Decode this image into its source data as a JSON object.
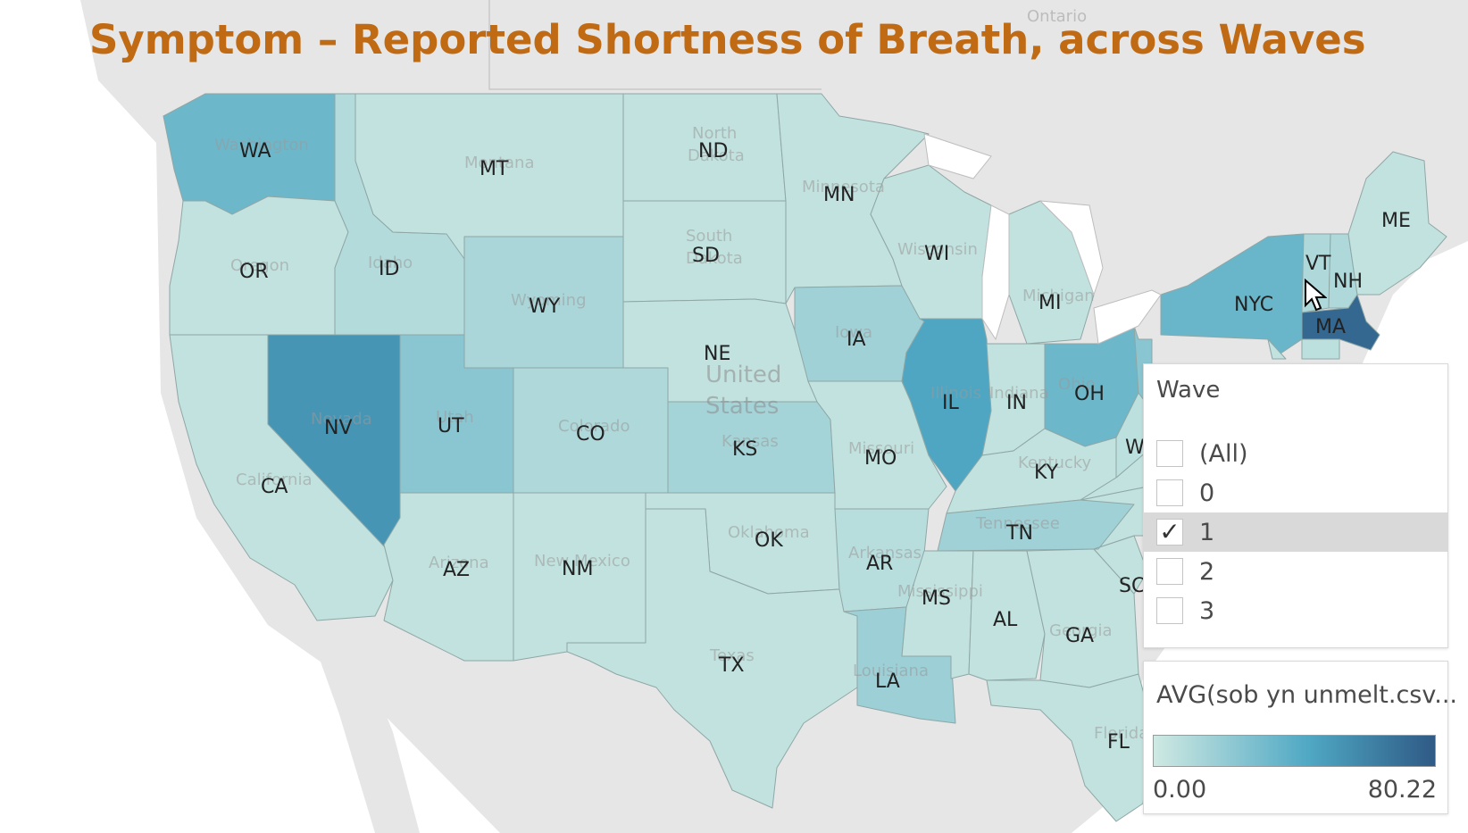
{
  "title": "Symptom – Reported Shortness of Breath, across Waves",
  "background_labels": {
    "ontario": "Ontario",
    "country_line1": "United",
    "country_line2": "States",
    "washington": "Washington",
    "montana": "Montana",
    "north": "North",
    "dakota_n": "Dakota",
    "south": "South",
    "dakota_s": "Dakota",
    "minnesota": "Minnesota",
    "oregon": "Oregon",
    "idaho": "Idaho",
    "wyoming": "Wyoming",
    "wisconsin": "Wisconsin",
    "michigan": "Michigan",
    "iowa": "Iowa",
    "nevada": "Nevada",
    "utah": "Utah",
    "colorado": "Colorado",
    "kansas": "Kansas",
    "missouri": "Missouri",
    "illinois": "Illinois",
    "indiana": "Indiana",
    "ohio": "Ohio",
    "kentucky": "Kentucky",
    "tennessee": "Tennessee",
    "california": "California",
    "arizona": "Arizona",
    "new_mexico": "New Mexico",
    "oklahoma": "Oklahoma",
    "arkansas": "Arkansas",
    "mississippi": "Mississippi",
    "georgia": "Georgia",
    "texas": "Texas",
    "louisiana": "Louisiana",
    "florida": "Florida"
  },
  "states": [
    {
      "code": "WA",
      "label": "WA",
      "level": 0.42
    },
    {
      "code": "OR",
      "label": "OR",
      "level": 0.06
    },
    {
      "code": "CA",
      "label": "CA",
      "level": 0.06
    },
    {
      "code": "ID",
      "label": "ID",
      "level": 0.12
    },
    {
      "code": "NV",
      "label": "NV",
      "level": 0.66
    },
    {
      "code": "MT",
      "label": "MT",
      "level": 0.06
    },
    {
      "code": "WY",
      "label": "WY",
      "level": 0.16
    },
    {
      "code": "UT",
      "label": "UT",
      "level": 0.3
    },
    {
      "code": "AZ",
      "label": "AZ",
      "level": 0.06
    },
    {
      "code": "CO",
      "label": "CO",
      "level": 0.14
    },
    {
      "code": "NM",
      "label": "NM",
      "level": 0.06
    },
    {
      "code": "ND",
      "label": "ND",
      "level": 0.06
    },
    {
      "code": "SD",
      "label": "SD",
      "level": 0.06
    },
    {
      "code": "NE",
      "label": "NE",
      "level": 0.06
    },
    {
      "code": "KS",
      "label": "KS",
      "level": 0.18
    },
    {
      "code": "OK",
      "label": "OK",
      "level": 0.06
    },
    {
      "code": "TX",
      "label": "TX",
      "level": 0.06
    },
    {
      "code": "MN",
      "label": "MN",
      "level": 0.06
    },
    {
      "code": "IA",
      "label": "IA",
      "level": 0.2
    },
    {
      "code": "MO",
      "label": "MO",
      "level": 0.06
    },
    {
      "code": "AR",
      "label": "AR",
      "level": 0.1
    },
    {
      "code": "LA",
      "label": "LA",
      "level": 0.22
    },
    {
      "code": "WI",
      "label": "WI",
      "level": 0.06
    },
    {
      "code": "IL",
      "label": "IL",
      "level": 0.56
    },
    {
      "code": "MI",
      "label": "MI",
      "level": 0.06
    },
    {
      "code": "IN",
      "label": "IN",
      "level": 0.06
    },
    {
      "code": "OH",
      "label": "OH",
      "level": 0.42
    },
    {
      "code": "KY",
      "label": "KY",
      "level": 0.06
    },
    {
      "code": "TN",
      "label": "TN",
      "level": 0.2
    },
    {
      "code": "MS",
      "label": "MS",
      "level": 0.06
    },
    {
      "code": "AL",
      "label": "AL",
      "level": 0.06
    },
    {
      "code": "GA",
      "label": "GA",
      "level": 0.06
    },
    {
      "code": "FL",
      "label": "FL",
      "level": 0.06
    },
    {
      "code": "SC",
      "label": "SC",
      "level": 0.06
    },
    {
      "code": "NC",
      "label": "",
      "level": 0.06
    },
    {
      "code": "VA",
      "label": "",
      "level": 0.06
    },
    {
      "code": "WV",
      "label": "W",
      "level": 0.08
    },
    {
      "code": "PA",
      "label": "",
      "level": 0.3
    },
    {
      "code": "NYC",
      "label": "NYC",
      "level": 0.44
    },
    {
      "code": "VT",
      "label": "VT",
      "level": 0.14
    },
    {
      "code": "NH",
      "label": "NH",
      "level": 0.14
    },
    {
      "code": "ME",
      "label": "ME",
      "level": 0.06
    },
    {
      "code": "MA",
      "label": "MA",
      "level": 0.92
    },
    {
      "code": "CT",
      "label": "",
      "level": 0.08
    },
    {
      "code": "NJ",
      "label": "",
      "level": 0.06
    }
  ],
  "filter": {
    "title": "Wave",
    "options": [
      {
        "label": "(All)",
        "checked": false
      },
      {
        "label": "0",
        "checked": false
      },
      {
        "label": "1",
        "checked": true
      },
      {
        "label": "2",
        "checked": false
      },
      {
        "label": "3",
        "checked": false
      }
    ],
    "check_mark": "✓"
  },
  "legend": {
    "title": "AVG(sob yn unmelt.csv...",
    "min": "0.00",
    "max": "80.22",
    "color_low": "#cfe9e2",
    "color_mid": "#4fa8c4",
    "color_high": "#2f5a86"
  },
  "colors": {
    "title": "#c06a14",
    "land": "#e8e8e8",
    "lake": "#ffffff"
  }
}
